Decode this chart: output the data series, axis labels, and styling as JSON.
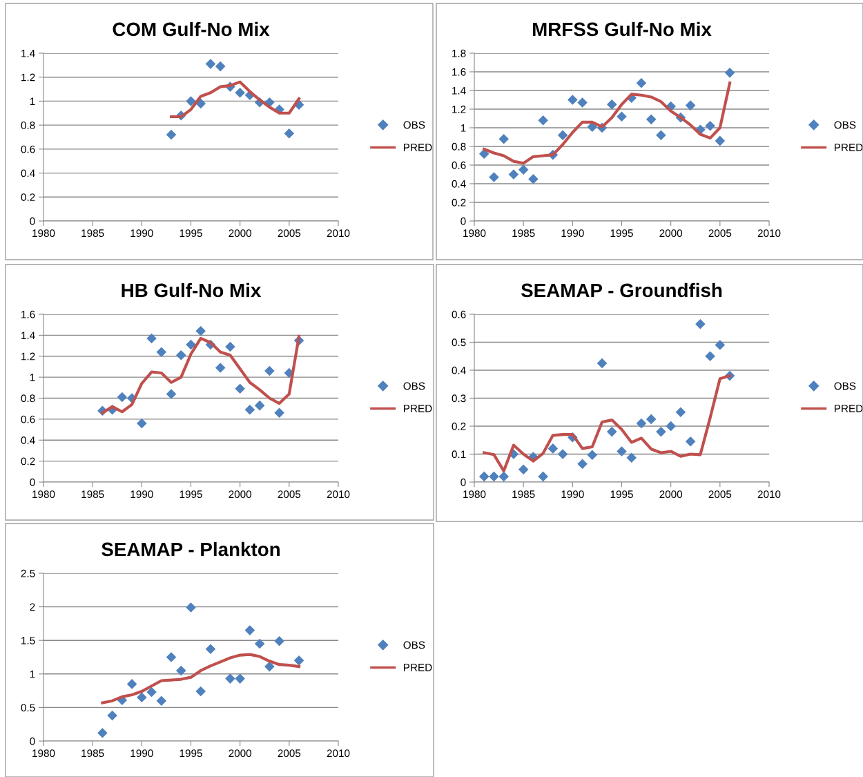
{
  "chart_data": [
    {
      "type": "scatter",
      "title": "COM Gulf-No Mix",
      "legend": "right",
      "grid": "y",
      "xlim": [
        1980,
        2010
      ],
      "xticks": [
        1980,
        1985,
        1990,
        1995,
        2000,
        2005,
        2010
      ],
      "ylim": [
        0,
        1.4
      ],
      "yticks": [
        0,
        0.2,
        0.4,
        0.6,
        0.8,
        1,
        1.2,
        1.4
      ],
      "series": [
        {
          "name": "OBS",
          "type": "scatter",
          "marker": "diamond",
          "color": "#4f81bd",
          "x": [
            1993,
            1994,
            1995,
            1996,
            1997,
            1998,
            1999,
            2000,
            2001,
            2002,
            2003,
            2004,
            2005,
            2006
          ],
          "values": [
            0.72,
            0.88,
            1.0,
            0.98,
            1.31,
            1.29,
            1.12,
            1.07,
            1.05,
            0.99,
            0.99,
            0.93,
            0.73,
            0.97
          ]
        },
        {
          "name": "PRED",
          "type": "line",
          "marker": "none",
          "line_style": "solid",
          "color": "#c0504d",
          "x": [
            1993,
            1994,
            1995,
            1996,
            1997,
            1998,
            1999,
            2000,
            2001,
            2002,
            2003,
            2004,
            2005,
            2006
          ],
          "values": [
            0.87,
            0.87,
            0.93,
            1.04,
            1.07,
            1.12,
            1.13,
            1.16,
            1.08,
            1.01,
            0.95,
            0.9,
            0.9,
            1.02
          ]
        }
      ]
    },
    {
      "type": "scatter",
      "title": "MRFSS Gulf-No Mix",
      "legend": "right",
      "grid": "y",
      "xlim": [
        1980,
        2010
      ],
      "xticks": [
        1980,
        1985,
        1990,
        1995,
        2000,
        2005,
        2010
      ],
      "ylim": [
        0,
        1.8
      ],
      "yticks": [
        0,
        0.2,
        0.4,
        0.6,
        0.8,
        1,
        1.2,
        1.4,
        1.6,
        1.8
      ],
      "series": [
        {
          "name": "OBS",
          "type": "scatter",
          "marker": "diamond",
          "color": "#4f81bd",
          "x": [
            1981,
            1982,
            1983,
            1984,
            1985,
            1986,
            1987,
            1988,
            1989,
            1990,
            1991,
            1992,
            1993,
            1994,
            1995,
            1996,
            1997,
            1998,
            1999,
            2000,
            2001,
            2002,
            2003,
            2004,
            2005,
            2006
          ],
          "values": [
            0.72,
            0.47,
            0.88,
            0.5,
            0.55,
            0.45,
            1.08,
            0.71,
            0.92,
            1.3,
            1.27,
            1.01,
            1.0,
            1.25,
            1.12,
            1.32,
            1.48,
            1.09,
            0.92,
            1.23,
            1.11,
            1.24,
            0.98,
            1.02,
            0.86,
            1.59
          ]
        },
        {
          "name": "PRED",
          "type": "line",
          "marker": "none",
          "line_style": "solid",
          "color": "#c0504d",
          "x": [
            1981,
            1982,
            1983,
            1984,
            1985,
            1986,
            1987,
            1988,
            1989,
            1990,
            1991,
            1992,
            1993,
            1994,
            1995,
            1996,
            1997,
            1998,
            1999,
            2000,
            2001,
            2002,
            2003,
            2004,
            2005,
            2006
          ],
          "values": [
            0.77,
            0.73,
            0.7,
            0.64,
            0.62,
            0.69,
            0.7,
            0.71,
            0.82,
            0.95,
            1.06,
            1.06,
            1.01,
            1.11,
            1.25,
            1.36,
            1.35,
            1.33,
            1.28,
            1.18,
            1.11,
            1.03,
            0.93,
            0.89,
            1.0,
            1.48
          ]
        }
      ]
    },
    {
      "type": "scatter",
      "title": "HB Gulf-No Mix",
      "legend": "right",
      "grid": "y",
      "xlim": [
        1980,
        2010
      ],
      "xticks": [
        1980,
        1985,
        1990,
        1995,
        2000,
        2005,
        2010
      ],
      "ylim": [
        0,
        1.6
      ],
      "yticks": [
        0,
        0.2,
        0.4,
        0.6,
        0.8,
        1,
        1.2,
        1.4,
        1.6
      ],
      "series": [
        {
          "name": "OBS",
          "type": "scatter",
          "marker": "diamond",
          "color": "#4f81bd",
          "x": [
            1986,
            1987,
            1988,
            1989,
            1990,
            1991,
            1992,
            1993,
            1994,
            1995,
            1996,
            1997,
            1998,
            1999,
            2000,
            2001,
            2002,
            2003,
            2004,
            2005,
            2006
          ],
          "values": [
            0.68,
            0.69,
            0.81,
            0.8,
            0.56,
            1.37,
            1.24,
            0.84,
            1.21,
            1.31,
            1.44,
            1.31,
            1.09,
            1.29,
            0.89,
            0.69,
            0.73,
            1.06,
            0.66,
            1.04,
            1.35
          ]
        },
        {
          "name": "PRED",
          "type": "line",
          "marker": "none",
          "line_style": "solid",
          "color": "#c0504d",
          "x": [
            1986,
            1987,
            1988,
            1989,
            1990,
            1991,
            1992,
            1993,
            1994,
            1995,
            1996,
            1997,
            1998,
            1999,
            2000,
            2001,
            2002,
            2003,
            2004,
            2005,
            2006
          ],
          "values": [
            0.66,
            0.72,
            0.67,
            0.74,
            0.94,
            1.05,
            1.04,
            0.95,
            1.0,
            1.22,
            1.37,
            1.33,
            1.24,
            1.21,
            1.08,
            0.95,
            0.88,
            0.8,
            0.75,
            0.84,
            1.39
          ]
        }
      ]
    },
    {
      "type": "scatter",
      "title": "SEAMAP - Groundfish",
      "legend": "right",
      "grid": "y",
      "xlim": [
        1980,
        2010
      ],
      "xticks": [
        1980,
        1985,
        1990,
        1995,
        2000,
        2005,
        2010
      ],
      "ylim": [
        0,
        0.6
      ],
      "yticks": [
        0,
        0.1,
        0.2,
        0.3,
        0.4,
        0.5,
        0.6
      ],
      "series": [
        {
          "name": "OBS",
          "type": "scatter",
          "marker": "diamond",
          "color": "#4f81bd",
          "x": [
            1981,
            1982,
            1983,
            1984,
            1985,
            1986,
            1987,
            1988,
            1989,
            1990,
            1991,
            1992,
            1993,
            1994,
            1995,
            1996,
            1997,
            1998,
            1999,
            2000,
            2001,
            2002,
            2003,
            2004,
            2005,
            2006
          ],
          "values": [
            0.02,
            0.02,
            0.02,
            0.1,
            0.045,
            0.09,
            0.02,
            0.12,
            0.1,
            0.16,
            0.065,
            0.097,
            0.425,
            0.18,
            0.11,
            0.087,
            0.21,
            0.225,
            0.18,
            0.2,
            0.25,
            0.145,
            0.565,
            0.45,
            0.49,
            0.38
          ]
        },
        {
          "name": "PRED",
          "type": "line",
          "marker": "none",
          "line_style": "solid",
          "color": "#c0504d",
          "x": [
            1981,
            1982,
            1983,
            1984,
            1985,
            1986,
            1987,
            1988,
            1989,
            1990,
            1991,
            1992,
            1993,
            1994,
            1995,
            1996,
            1997,
            1998,
            1999,
            2000,
            2001,
            2002,
            2003,
            2004,
            2005,
            2006
          ],
          "values": [
            0.105,
            0.098,
            0.04,
            0.132,
            0.1,
            0.075,
            0.103,
            0.167,
            0.17,
            0.17,
            0.12,
            0.126,
            0.215,
            0.222,
            0.188,
            0.142,
            0.157,
            0.118,
            0.105,
            0.11,
            0.092,
            0.1,
            0.098,
            0.23,
            0.37,
            0.38
          ]
        }
      ]
    },
    {
      "type": "scatter",
      "title": "SEAMAP - Plankton",
      "legend": "right",
      "grid": "y",
      "xlim": [
        1980,
        2010
      ],
      "xticks": [
        1980,
        1985,
        1990,
        1995,
        2000,
        2005,
        2010
      ],
      "ylim": [
        0,
        2.5
      ],
      "yticks": [
        0,
        0.5,
        1,
        1.5,
        2,
        2.5
      ],
      "series": [
        {
          "name": "OBS",
          "type": "scatter",
          "marker": "diamond",
          "color": "#4f81bd",
          "x": [
            1986,
            1987,
            1988,
            1989,
            1990,
            1991,
            1992,
            1993,
            1994,
            1995,
            1996,
            1997,
            1999,
            2000,
            2001,
            2002,
            2003,
            2004,
            2006
          ],
          "values": [
            0.12,
            0.38,
            0.61,
            0.85,
            0.65,
            0.73,
            0.6,
            1.25,
            1.05,
            1.99,
            0.74,
            1.37,
            0.93,
            0.93,
            1.65,
            1.45,
            1.11,
            1.49,
            1.2
          ]
        },
        {
          "name": "PRED",
          "type": "line",
          "marker": "none",
          "line_style": "solid",
          "color": "#c0504d",
          "x": [
            1986,
            1987,
            1988,
            1989,
            1990,
            1991,
            1992,
            1993,
            1994,
            1995,
            1996,
            1997,
            1998,
            1999,
            2000,
            2001,
            2002,
            2003,
            2004,
            2005,
            2006
          ],
          "values": [
            0.57,
            0.6,
            0.66,
            0.69,
            0.74,
            0.82,
            0.9,
            0.91,
            0.92,
            0.95,
            1.05,
            1.12,
            1.18,
            1.24,
            1.28,
            1.29,
            1.26,
            1.19,
            1.14,
            1.13,
            1.11
          ]
        }
      ]
    }
  ]
}
